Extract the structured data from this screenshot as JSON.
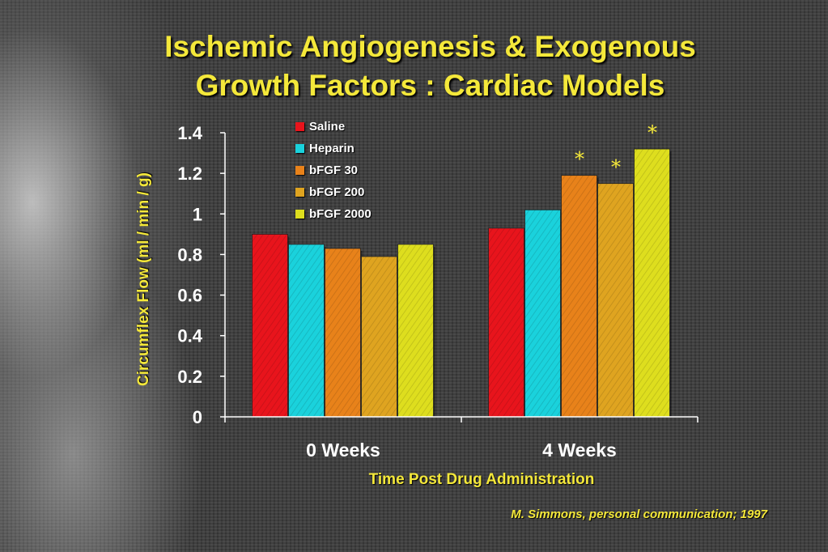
{
  "title_lines": [
    "Ischemic Angiogenesis & Exogenous",
    "Growth Factors : Cardiac Models"
  ],
  "source_note": "M. Simmons,  personal communication; 1997",
  "colors": {
    "title": "#f4e83a",
    "saline": "#e8141c",
    "heparin": "#1ad2dc",
    "bfgf30": "#e8821a",
    "bfgf200": "#dfa420",
    "bfgf2000": "#dede1e"
  },
  "chart_data": {
    "type": "bar",
    "categories": [
      "0 Weeks",
      "4 Weeks"
    ],
    "series": [
      {
        "name": "Saline",
        "color": "#e8141c",
        "values": [
          0.9,
          0.93
        ]
      },
      {
        "name": "Heparin",
        "color": "#1ad2dc",
        "values": [
          0.85,
          1.02
        ]
      },
      {
        "name": "bFGF 30",
        "color": "#e8821a",
        "values": [
          0.83,
          1.19
        ]
      },
      {
        "name": "bFGF 200",
        "color": "#dfa420",
        "values": [
          0.79,
          1.15
        ]
      },
      {
        "name": "bFGF 2000",
        "color": "#dede1e",
        "values": [
          0.85,
          1.32
        ]
      }
    ],
    "significance": [
      {
        "category": "4 Weeks",
        "series": "bFGF 30",
        "symbol": "*"
      },
      {
        "category": "4 Weeks",
        "series": "bFGF 200",
        "symbol": "*"
      },
      {
        "category": "4 Weeks",
        "series": "bFGF 2000",
        "symbol": "*"
      }
    ],
    "xlabel": "Time Post Drug Administration",
    "ylabel": "Circumflex  Flow  (ml / min / g)",
    "ylim": [
      0,
      1.4
    ],
    "yticks": [
      0,
      0.2,
      0.4,
      0.6,
      0.8,
      1,
      1.2,
      1.4
    ],
    "ytick_labels": [
      "0",
      "0.2",
      "0.4",
      "0.6",
      "0.8",
      "1",
      "1.2",
      "1.4"
    ],
    "grid": false,
    "legend_position": "top-center"
  }
}
